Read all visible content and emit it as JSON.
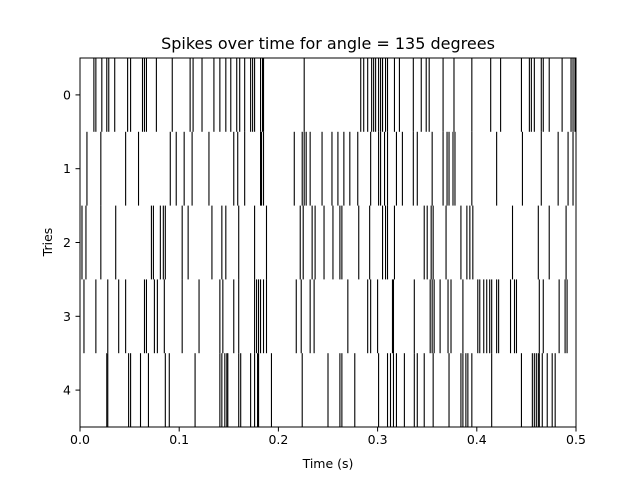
{
  "chart_data": {
    "type": "raster",
    "title": "Spikes over time for angle = 135 degrees",
    "xlabel": "Time (s)",
    "ylabel": "Tries",
    "xlim": [
      0.0,
      0.5
    ],
    "xticks": [
      "0.0",
      "0.1",
      "0.2",
      "0.3",
      "0.4",
      "0.5"
    ],
    "yticks": [
      "0",
      "1",
      "2",
      "3",
      "4"
    ],
    "grid": false,
    "spike_color": "#000000",
    "trials": [
      {
        "trial": "0",
        "spike_times": [
          0.014,
          0.016,
          0.022,
          0.027,
          0.029,
          0.035,
          0.048,
          0.051,
          0.063,
          0.065,
          0.067,
          0.077,
          0.093,
          0.111,
          0.114,
          0.123,
          0.135,
          0.141,
          0.147,
          0.152,
          0.158,
          0.161,
          0.166,
          0.172,
          0.174,
          0.176,
          0.182,
          0.184,
          0.185,
          0.226,
          0.283,
          0.286,
          0.29,
          0.294,
          0.296,
          0.298,
          0.301,
          0.303,
          0.305,
          0.308,
          0.31,
          0.317,
          0.322,
          0.336,
          0.344,
          0.349,
          0.352,
          0.366,
          0.377,
          0.395,
          0.414,
          0.424,
          0.445,
          0.453,
          0.455,
          0.458,
          0.465,
          0.467,
          0.473,
          0.486,
          0.495,
          0.497,
          0.499
        ]
      },
      {
        "trial": "1",
        "spike_times": [
          0.007,
          0.021,
          0.046,
          0.059,
          0.091,
          0.097,
          0.105,
          0.113,
          0.13,
          0.155,
          0.159,
          0.166,
          0.182,
          0.183,
          0.185,
          0.216,
          0.224,
          0.226,
          0.228,
          0.232,
          0.244,
          0.254,
          0.26,
          0.266,
          0.272,
          0.28,
          0.293,
          0.301,
          0.303,
          0.307,
          0.31,
          0.319,
          0.325,
          0.336,
          0.34,
          0.355,
          0.366,
          0.37,
          0.372,
          0.376,
          0.378,
          0.395,
          0.42,
          0.446,
          0.465,
          0.482,
          0.492,
          0.497
        ]
      },
      {
        "trial": "2",
        "spike_times": [
          0.002,
          0.006,
          0.021,
          0.036,
          0.072,
          0.074,
          0.081,
          0.084,
          0.086,
          0.103,
          0.109,
          0.133,
          0.143,
          0.147,
          0.16,
          0.176,
          0.188,
          0.222,
          0.225,
          0.234,
          0.237,
          0.246,
          0.255,
          0.262,
          0.264,
          0.281,
          0.292,
          0.305,
          0.308,
          0.31,
          0.317,
          0.347,
          0.35,
          0.354,
          0.356,
          0.369,
          0.384,
          0.39,
          0.393,
          0.396,
          0.436,
          0.462,
          0.473,
          0.49
        ]
      },
      {
        "trial": "3",
        "spike_times": [
          0.004,
          0.016,
          0.028,
          0.039,
          0.046,
          0.065,
          0.067,
          0.075,
          0.078,
          0.085,
          0.103,
          0.12,
          0.141,
          0.144,
          0.155,
          0.16,
          0.176,
          0.178,
          0.18,
          0.182,
          0.185,
          0.188,
          0.218,
          0.223,
          0.232,
          0.236,
          0.27,
          0.29,
          0.293,
          0.3,
          0.315,
          0.316,
          0.337,
          0.353,
          0.355,
          0.357,
          0.363,
          0.371,
          0.374,
          0.386,
          0.401,
          0.403,
          0.407,
          0.41,
          0.413,
          0.415,
          0.42,
          0.422,
          0.434,
          0.438,
          0.44,
          0.463,
          0.467,
          0.483,
          0.489,
          0.491
        ]
      },
      {
        "trial": "4",
        "spike_times": [
          0.027,
          0.028,
          0.049,
          0.051,
          0.061,
          0.069,
          0.086,
          0.09,
          0.116,
          0.141,
          0.143,
          0.146,
          0.148,
          0.149,
          0.16,
          0.162,
          0.172,
          0.176,
          0.179,
          0.18,
          0.193,
          0.224,
          0.25,
          0.262,
          0.264,
          0.277,
          0.301,
          0.31,
          0.313,
          0.316,
          0.319,
          0.327,
          0.337,
          0.34,
          0.347,
          0.356,
          0.372,
          0.384,
          0.386,
          0.389,
          0.391,
          0.395,
          0.415,
          0.445,
          0.456,
          0.458,
          0.46,
          0.462,
          0.463,
          0.466,
          0.471,
          0.476,
          0.479
        ]
      }
    ]
  }
}
